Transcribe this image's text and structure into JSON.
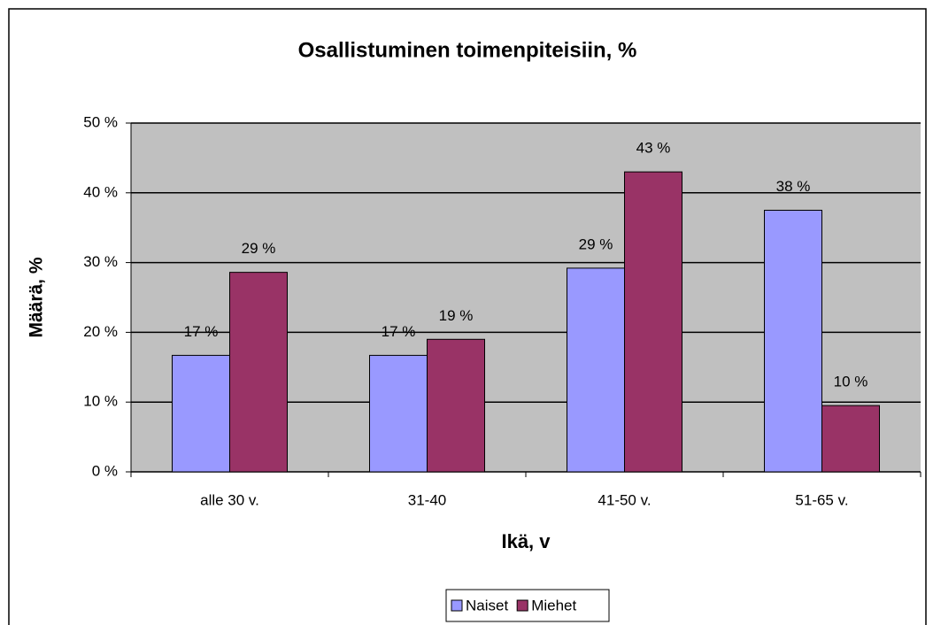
{
  "chart_data": {
    "type": "bar",
    "title": "Osallistuminen toimenpiteisiin, %",
    "y_label": "Määrä, %",
    "x_label": "Ikä, v",
    "categories": [
      "alle 30 v.",
      "31-40",
      "41-50 v.",
      "51-65 v."
    ],
    "series": [
      {
        "name": "Naiset",
        "color": "#9999ff",
        "values": [
          16.7,
          16.7,
          29.2,
          37.5
        ],
        "value_labels": [
          "17 %",
          "17 %",
          "29 %",
          "38 %"
        ]
      },
      {
        "name": "Miehet",
        "color": "#993366",
        "values": [
          28.6,
          19.0,
          43.0,
          9.5
        ],
        "value_labels": [
          "29 %",
          "19 %",
          "43 %",
          "10 %"
        ]
      }
    ],
    "ylim": [
      0,
      50
    ],
    "yticks": [
      {
        "value": 0,
        "label": "0 %"
      },
      {
        "value": 10,
        "label": "10 %"
      },
      {
        "value": 20,
        "label": "20 %"
      },
      {
        "value": 30,
        "label": "30 %"
      },
      {
        "value": 40,
        "label": "40 %"
      },
      {
        "value": 50,
        "label": "50 %"
      }
    ],
    "grid": true,
    "legend": "bottom"
  }
}
